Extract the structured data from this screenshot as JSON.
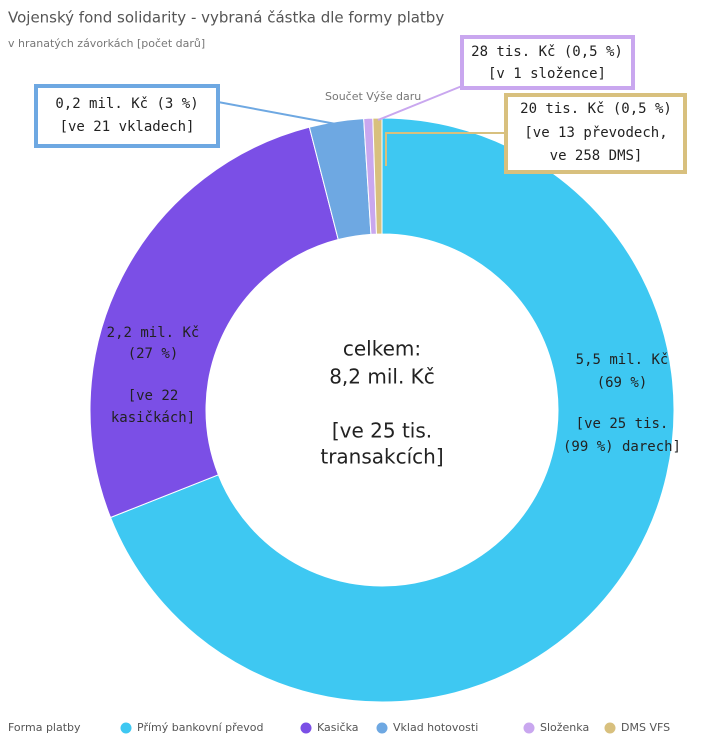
{
  "chart_data": {
    "type": "donut",
    "title": "Vojenský fond solidarity - vybraná částka dle formy platby",
    "subtitle": "v hranatých závorkách [počet darů]",
    "pie_title": "Součet Výše daru",
    "legend_title": "Forma platby",
    "categories": [
      "Přímý bankovní převod",
      "Kasička",
      "Vklad hotovosti",
      "Složenka",
      "DMS VFS"
    ],
    "values": [
      69,
      27,
      3,
      0.5,
      0.5
    ],
    "colors": [
      "#3ec8f2",
      "#7b4fe6",
      "#6ea8e2",
      "#c9a7ef",
      "#d8c07e"
    ],
    "slice_labels": [
      [
        "5,5 mil. Kč",
        "(69 %)",
        "[ve 25 tis.",
        "(99 %) darech]"
      ],
      [
        "2,2 mil. Kč",
        "(27 %)",
        "[ve 22",
        "kasičkách]"
      ],
      [
        "0,2 mil. Kč (3 %)",
        "[ve 21 vkladech]"
      ],
      [
        "28 tis. Kč (0,5 %)",
        "[v 1 složence]"
      ],
      [
        "20 tis. Kč (0,5 %)",
        "[ve 13 převodech,",
        "ve 258 DMS]"
      ]
    ],
    "center_label": [
      "celkem:",
      "8,2 mil. Kč",
      "[ve 25 tis.",
      "transakcích]"
    ]
  }
}
